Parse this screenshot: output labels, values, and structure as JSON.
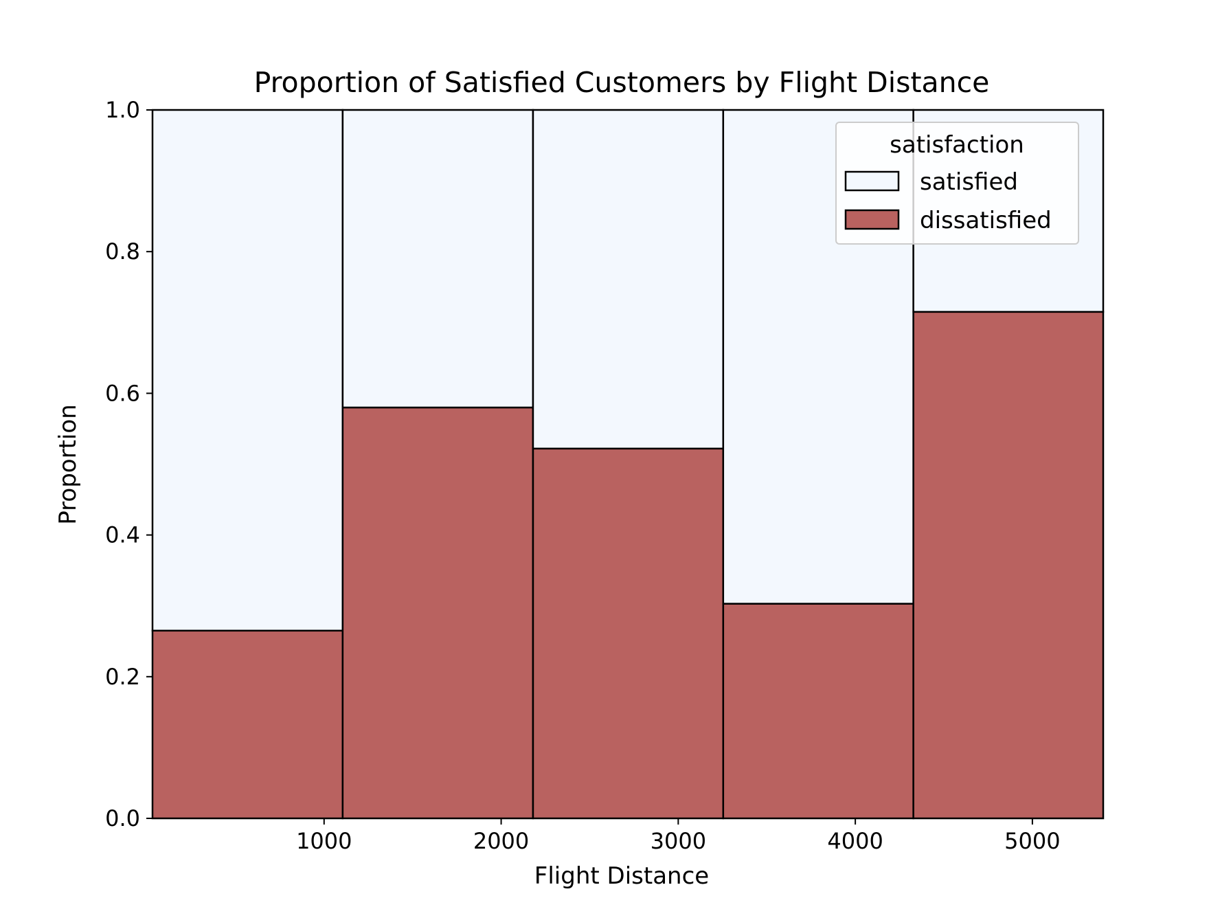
{
  "chart_data": {
    "type": "bar",
    "title": "Proportion of Satisfied Customers by Flight Distance",
    "xlabel": "Flight Distance",
    "ylabel": "Proportion",
    "xlim": [
      31,
      5400
    ],
    "ylim": [
      0.0,
      1.0
    ],
    "x_ticks": [
      {
        "value": 1000,
        "label": "1000"
      },
      {
        "value": 2000,
        "label": "2000"
      },
      {
        "value": 3000,
        "label": "3000"
      },
      {
        "value": 4000,
        "label": "4000"
      },
      {
        "value": 5000,
        "label": "5000"
      }
    ],
    "y_ticks": [
      {
        "value": 0.0,
        "label": "0.0"
      },
      {
        "value": 0.2,
        "label": "0.2"
      },
      {
        "value": 0.4,
        "label": "0.4"
      },
      {
        "value": 0.6,
        "label": "0.6"
      },
      {
        "value": 0.8,
        "label": "0.8"
      },
      {
        "value": 1.0,
        "label": "1.0"
      }
    ],
    "bin_edges": [
      31,
      1105,
      2180,
      3254,
      4328,
      5400
    ],
    "stacked": true,
    "series": [
      {
        "name": "dissatisfied",
        "color": "#b96260",
        "values": [
          0.265,
          0.58,
          0.522,
          0.303,
          0.715
        ]
      },
      {
        "name": "satisfied",
        "color": "#f3f8fe",
        "values": [
          0.735,
          0.42,
          0.478,
          0.697,
          0.285
        ]
      }
    ],
    "legend": {
      "title": "satisfaction",
      "position": "top-right",
      "entries": [
        {
          "label": "satisfied",
          "color": "#f3f8fe"
        },
        {
          "label": "dissatisfied",
          "color": "#b96260"
        }
      ]
    },
    "grid": false
  }
}
